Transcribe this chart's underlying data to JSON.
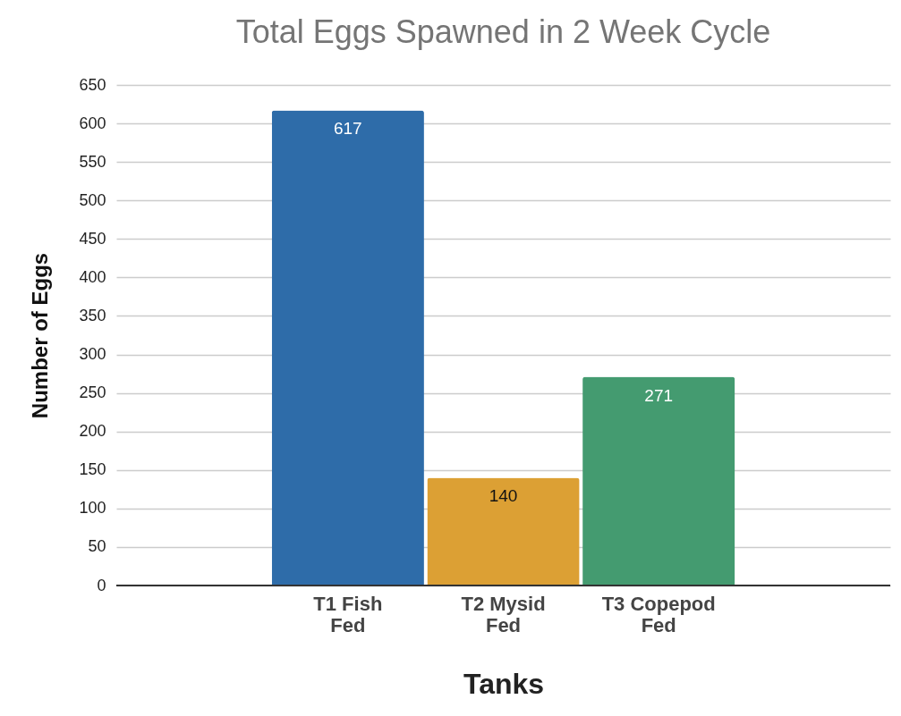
{
  "chart_data": {
    "type": "bar",
    "title": "Total Eggs Spawned in 2 Week Cycle",
    "xlabel": "Tanks",
    "ylabel": "Number of Eggs",
    "categories": [
      "T1 Fish Fed",
      "T2 Mysid Fed",
      "T3 Copepod Fed"
    ],
    "values": [
      617,
      140,
      271
    ],
    "colors": [
      "#2e6ca9",
      "#dca034",
      "#449b70"
    ],
    "ylim": [
      0,
      650
    ],
    "yticks": [
      0,
      50,
      100,
      150,
      200,
      250,
      300,
      350,
      400,
      450,
      500,
      550,
      600,
      650
    ],
    "grid": "y",
    "data_labels": true
  }
}
